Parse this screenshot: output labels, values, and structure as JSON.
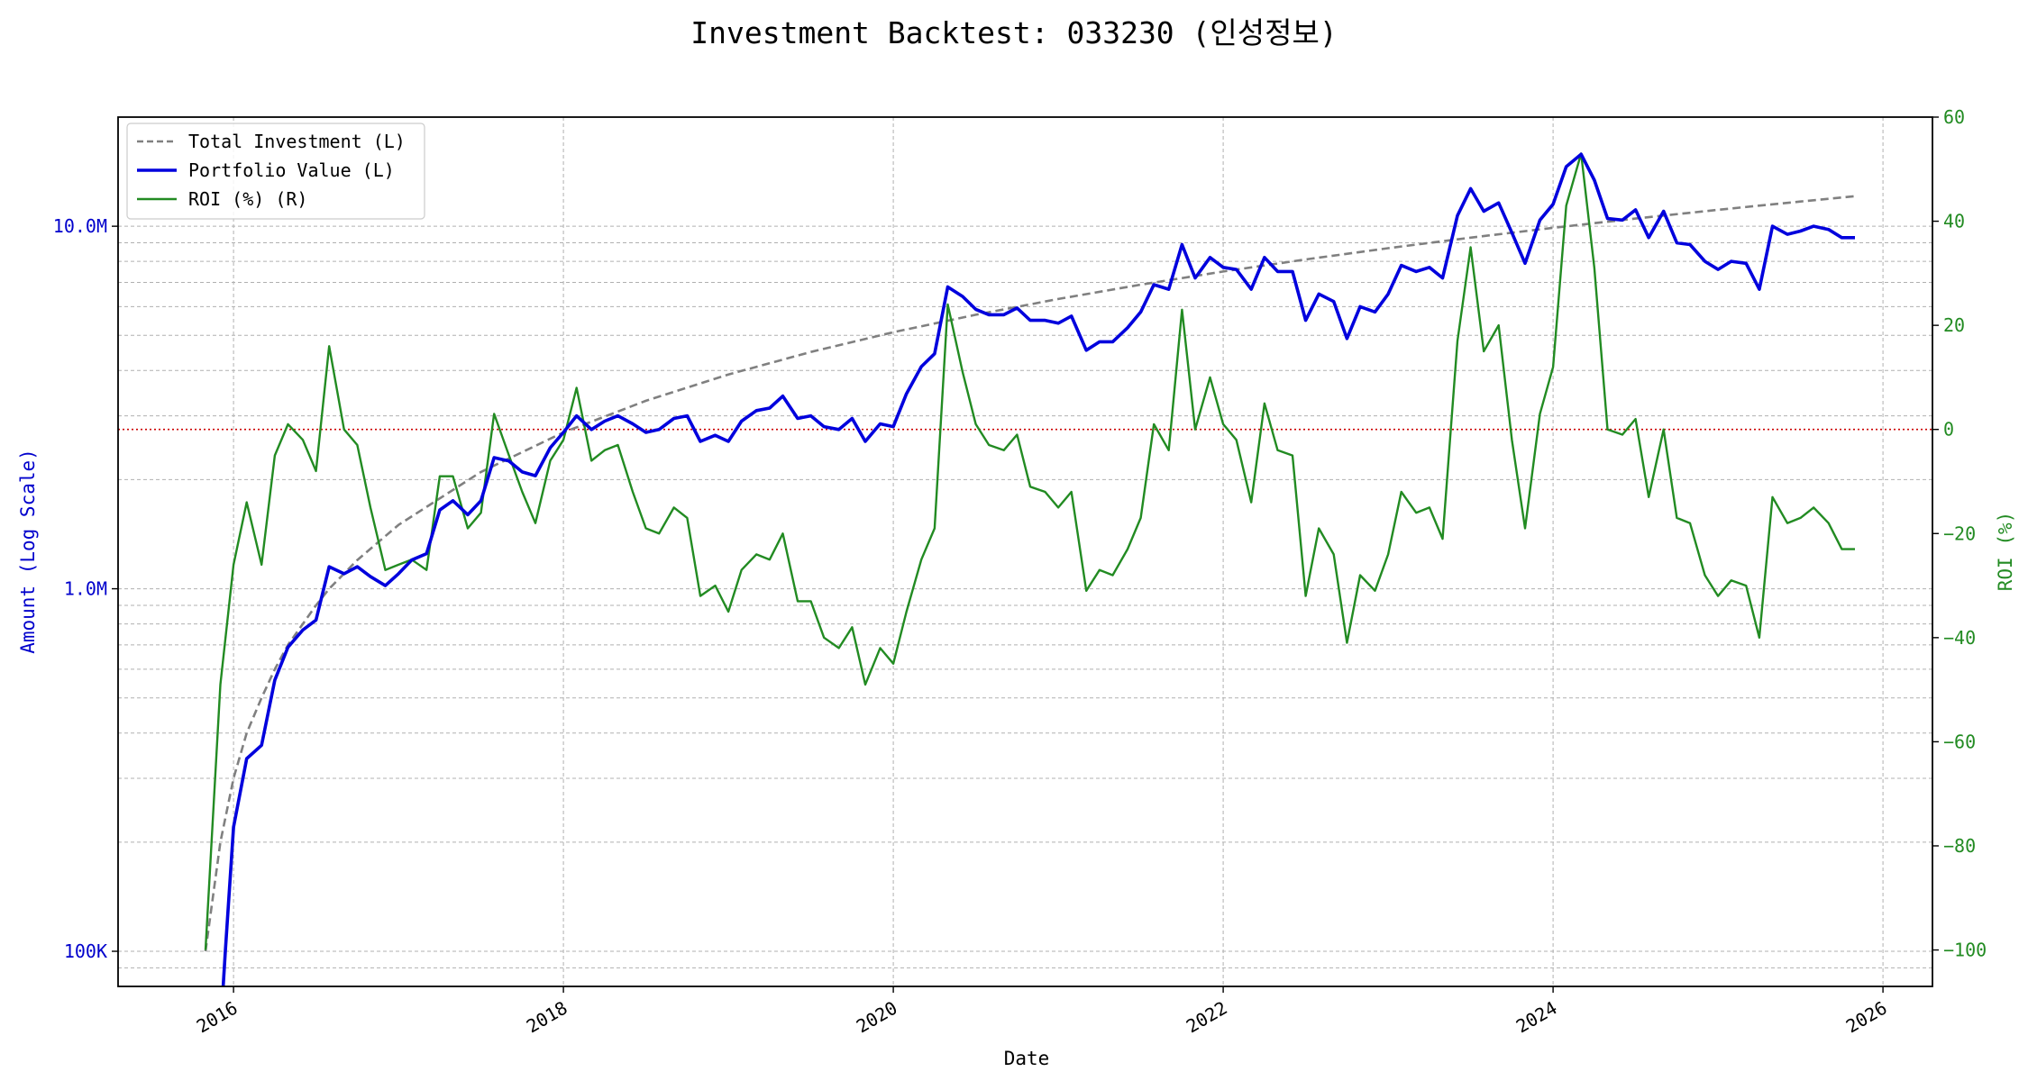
{
  "chart_data": {
    "type": "line",
    "title": "Investment Backtest: 033230 (인성정보)",
    "xlabel": "Date",
    "ylabel_left": "Amount (Log Scale)",
    "ylabel_right": "ROI (%)",
    "left_axis": {
      "scale": "log",
      "range": [
        80000,
        20000000
      ],
      "ticks": [
        100000,
        1000000,
        10000000
      ],
      "tick_labels": [
        "100K",
        "1.0M",
        "10.0M"
      ],
      "color": "#0000cc"
    },
    "right_axis": {
      "scale": "linear",
      "range": [
        -107,
        60
      ],
      "ticks": [
        -100,
        -80,
        -60,
        -40,
        -20,
        0,
        20,
        40,
        60
      ],
      "tick_labels": [
        "−100",
        "−80",
        "−60",
        "−40",
        "−20",
        "0",
        "20",
        "40",
        "60"
      ],
      "color": "#228b22"
    },
    "x_axis": {
      "range": [
        2015.3,
        2026.3
      ],
      "ticks": [
        2016,
        2018,
        2020,
        2022,
        2024,
        2026
      ],
      "tick_labels": [
        "2016",
        "2018",
        "2020",
        "2022",
        "2024",
        "2026"
      ]
    },
    "grid": true,
    "reference_line": {
      "axis": "right",
      "value": 0,
      "style": "dotted",
      "color": "#cc0000"
    },
    "legend": {
      "position": "upper-left",
      "entries": [
        {
          "label": "Total Investment (L)",
          "color": "#808080",
          "style": "dashed"
        },
        {
          "label": "Portfolio Value (L)",
          "color": "#0000dd",
          "style": "solid-thick"
        },
        {
          "label": "ROI (%) (R)",
          "color": "#228b22",
          "style": "solid"
        }
      ]
    },
    "series": [
      {
        "name": "Total Investment (L)",
        "axis": "left",
        "color": "#808080",
        "points": [
          [
            2015.83,
            100000
          ],
          [
            2015.92,
            200000
          ],
          [
            2016.0,
            300000
          ],
          [
            2016.08,
            400000
          ],
          [
            2016.17,
            500000
          ],
          [
            2016.25,
            600000
          ],
          [
            2016.33,
            700000
          ],
          [
            2016.42,
            800000
          ],
          [
            2016.5,
            900000
          ],
          [
            2016.58,
            1000000
          ],
          [
            2016.75,
            1200000
          ],
          [
            2017.0,
            1500000
          ],
          [
            2017.5,
            2100000
          ],
          [
            2018.0,
            2700000
          ],
          [
            2018.5,
            3300000
          ],
          [
            2019.0,
            3900000
          ],
          [
            2019.5,
            4500000
          ],
          [
            2020.0,
            5100000
          ],
          [
            2020.5,
            5700000
          ],
          [
            2021.0,
            6300000
          ],
          [
            2021.5,
            6900000
          ],
          [
            2022.0,
            7500000
          ],
          [
            2022.5,
            8100000
          ],
          [
            2023.0,
            8700000
          ],
          [
            2023.5,
            9300000
          ],
          [
            2024.0,
            9900000
          ],
          [
            2024.5,
            10500000
          ],
          [
            2025.0,
            11100000
          ],
          [
            2025.5,
            11700000
          ],
          [
            2025.83,
            12100000
          ]
        ]
      },
      {
        "name": "Portfolio Value (L)",
        "axis": "left",
        "color": "#0000dd",
        "points": [
          [
            2015.92,
            60000
          ],
          [
            2015.95,
            100000
          ],
          [
            2016.0,
            220000
          ],
          [
            2016.08,
            340000
          ],
          [
            2016.17,
            370000
          ],
          [
            2016.25,
            560000
          ],
          [
            2016.33,
            690000
          ],
          [
            2016.42,
            770000
          ],
          [
            2016.5,
            820000
          ],
          [
            2016.58,
            1150000
          ],
          [
            2016.67,
            1100000
          ],
          [
            2016.75,
            1150000
          ],
          [
            2016.83,
            1080000
          ],
          [
            2016.92,
            1020000
          ],
          [
            2017.0,
            1100000
          ],
          [
            2017.08,
            1200000
          ],
          [
            2017.17,
            1250000
          ],
          [
            2017.25,
            1650000
          ],
          [
            2017.33,
            1750000
          ],
          [
            2017.42,
            1600000
          ],
          [
            2017.5,
            1750000
          ],
          [
            2017.58,
            2300000
          ],
          [
            2017.67,
            2250000
          ],
          [
            2017.75,
            2100000
          ],
          [
            2017.83,
            2050000
          ],
          [
            2017.92,
            2450000
          ],
          [
            2018.0,
            2700000
          ],
          [
            2018.08,
            3000000
          ],
          [
            2018.17,
            2750000
          ],
          [
            2018.25,
            2900000
          ],
          [
            2018.33,
            3000000
          ],
          [
            2018.42,
            2850000
          ],
          [
            2018.5,
            2700000
          ],
          [
            2018.58,
            2750000
          ],
          [
            2018.67,
            2950000
          ],
          [
            2018.75,
            3000000
          ],
          [
            2018.83,
            2550000
          ],
          [
            2018.92,
            2650000
          ],
          [
            2019.0,
            2550000
          ],
          [
            2019.08,
            2900000
          ],
          [
            2019.17,
            3100000
          ],
          [
            2019.25,
            3150000
          ],
          [
            2019.33,
            3400000
          ],
          [
            2019.42,
            2950000
          ],
          [
            2019.5,
            3000000
          ],
          [
            2019.58,
            2800000
          ],
          [
            2019.67,
            2750000
          ],
          [
            2019.75,
            2950000
          ],
          [
            2019.83,
            2550000
          ],
          [
            2019.92,
            2850000
          ],
          [
            2020.0,
            2800000
          ],
          [
            2020.08,
            3450000
          ],
          [
            2020.17,
            4100000
          ],
          [
            2020.25,
            4450000
          ],
          [
            2020.33,
            6800000
          ],
          [
            2020.42,
            6400000
          ],
          [
            2020.5,
            5900000
          ],
          [
            2020.58,
            5700000
          ],
          [
            2020.67,
            5700000
          ],
          [
            2020.75,
            5950000
          ],
          [
            2020.83,
            5500000
          ],
          [
            2020.92,
            5500000
          ],
          [
            2021.0,
            5400000
          ],
          [
            2021.08,
            5650000
          ],
          [
            2021.17,
            4550000
          ],
          [
            2021.25,
            4800000
          ],
          [
            2021.33,
            4800000
          ],
          [
            2021.42,
            5250000
          ],
          [
            2021.5,
            5800000
          ],
          [
            2021.58,
            6900000
          ],
          [
            2021.67,
            6700000
          ],
          [
            2021.75,
            8900000
          ],
          [
            2021.83,
            7200000
          ],
          [
            2021.92,
            8200000
          ],
          [
            2022.0,
            7700000
          ],
          [
            2022.08,
            7600000
          ],
          [
            2022.17,
            6700000
          ],
          [
            2022.25,
            8200000
          ],
          [
            2022.33,
            7500000
          ],
          [
            2022.42,
            7500000
          ],
          [
            2022.5,
            5500000
          ],
          [
            2022.58,
            6500000
          ],
          [
            2022.67,
            6200000
          ],
          [
            2022.75,
            4900000
          ],
          [
            2022.83,
            6000000
          ],
          [
            2022.92,
            5800000
          ],
          [
            2023.0,
            6500000
          ],
          [
            2023.08,
            7800000
          ],
          [
            2023.17,
            7500000
          ],
          [
            2023.25,
            7700000
          ],
          [
            2023.33,
            7200000
          ],
          [
            2023.42,
            10700000
          ],
          [
            2023.5,
            12700000
          ],
          [
            2023.58,
            11000000
          ],
          [
            2023.67,
            11600000
          ],
          [
            2023.75,
            9600000
          ],
          [
            2023.83,
            7900000
          ],
          [
            2023.92,
            10400000
          ],
          [
            2024.0,
            11500000
          ],
          [
            2024.08,
            14600000
          ],
          [
            2024.17,
            15800000
          ],
          [
            2024.25,
            13400000
          ],
          [
            2024.33,
            10500000
          ],
          [
            2024.42,
            10400000
          ],
          [
            2024.5,
            11100000
          ],
          [
            2024.58,
            9300000
          ],
          [
            2024.67,
            11000000
          ],
          [
            2024.75,
            9000000
          ],
          [
            2024.83,
            8900000
          ],
          [
            2024.92,
            8000000
          ],
          [
            2025.0,
            7600000
          ],
          [
            2025.08,
            8000000
          ],
          [
            2025.17,
            7900000
          ],
          [
            2025.25,
            6700000
          ],
          [
            2025.33,
            10000000
          ],
          [
            2025.42,
            9500000
          ],
          [
            2025.5,
            9700000
          ],
          [
            2025.58,
            10000000
          ],
          [
            2025.67,
            9800000
          ],
          [
            2025.75,
            9300000
          ],
          [
            2025.83,
            9300000
          ]
        ]
      },
      {
        "name": "ROI (%) (R)",
        "axis": "right",
        "color": "#228b22",
        "points": [
          [
            2015.83,
            -100
          ],
          [
            2015.92,
            -49
          ],
          [
            2016.0,
            -26
          ],
          [
            2016.08,
            -14
          ],
          [
            2016.17,
            -26
          ],
          [
            2016.25,
            -5
          ],
          [
            2016.33,
            1
          ],
          [
            2016.42,
            -2
          ],
          [
            2016.5,
            -8
          ],
          [
            2016.58,
            16
          ],
          [
            2016.67,
            0
          ],
          [
            2016.75,
            -3
          ],
          [
            2016.83,
            -15
          ],
          [
            2016.92,
            -27
          ],
          [
            2017.0,
            -26
          ],
          [
            2017.08,
            -25
          ],
          [
            2017.17,
            -27
          ],
          [
            2017.25,
            -9
          ],
          [
            2017.33,
            -9
          ],
          [
            2017.42,
            -19
          ],
          [
            2017.5,
            -16
          ],
          [
            2017.58,
            3
          ],
          [
            2017.67,
            -5
          ],
          [
            2017.75,
            -12
          ],
          [
            2017.83,
            -18
          ],
          [
            2017.92,
            -6
          ],
          [
            2018.0,
            -2
          ],
          [
            2018.08,
            8
          ],
          [
            2018.17,
            -6
          ],
          [
            2018.25,
            -4
          ],
          [
            2018.33,
            -3
          ],
          [
            2018.42,
            -12
          ],
          [
            2018.5,
            -19
          ],
          [
            2018.58,
            -20
          ],
          [
            2018.67,
            -15
          ],
          [
            2018.75,
            -17
          ],
          [
            2018.83,
            -32
          ],
          [
            2018.92,
            -30
          ],
          [
            2019.0,
            -35
          ],
          [
            2019.08,
            -27
          ],
          [
            2019.17,
            -24
          ],
          [
            2019.25,
            -25
          ],
          [
            2019.33,
            -20
          ],
          [
            2019.42,
            -33
          ],
          [
            2019.5,
            -33
          ],
          [
            2019.58,
            -40
          ],
          [
            2019.67,
            -42
          ],
          [
            2019.75,
            -38
          ],
          [
            2019.83,
            -49
          ],
          [
            2019.92,
            -42
          ],
          [
            2020.0,
            -45
          ],
          [
            2020.08,
            -35
          ],
          [
            2020.17,
            -25
          ],
          [
            2020.25,
            -19
          ],
          [
            2020.33,
            24
          ],
          [
            2020.42,
            11
          ],
          [
            2020.5,
            1
          ],
          [
            2020.58,
            -3
          ],
          [
            2020.67,
            -4
          ],
          [
            2020.75,
            -1
          ],
          [
            2020.83,
            -11
          ],
          [
            2020.92,
            -12
          ],
          [
            2021.0,
            -15
          ],
          [
            2021.08,
            -12
          ],
          [
            2021.17,
            -31
          ],
          [
            2021.25,
            -27
          ],
          [
            2021.33,
            -28
          ],
          [
            2021.42,
            -23
          ],
          [
            2021.5,
            -17
          ],
          [
            2021.58,
            1
          ],
          [
            2021.67,
            -4
          ],
          [
            2021.75,
            23
          ],
          [
            2021.83,
            0
          ],
          [
            2021.92,
            10
          ],
          [
            2022.0,
            1
          ],
          [
            2022.08,
            -2
          ],
          [
            2022.17,
            -14
          ],
          [
            2022.25,
            5
          ],
          [
            2022.33,
            -4
          ],
          [
            2022.42,
            -5
          ],
          [
            2022.5,
            -32
          ],
          [
            2022.58,
            -19
          ],
          [
            2022.67,
            -24
          ],
          [
            2022.75,
            -41
          ],
          [
            2022.83,
            -28
          ],
          [
            2022.92,
            -31
          ],
          [
            2023.0,
            -24
          ],
          [
            2023.08,
            -12
          ],
          [
            2023.17,
            -16
          ],
          [
            2023.25,
            -15
          ],
          [
            2023.33,
            -21
          ],
          [
            2023.42,
            17
          ],
          [
            2023.5,
            35
          ],
          [
            2023.58,
            15
          ],
          [
            2023.67,
            20
          ],
          [
            2023.75,
            -2
          ],
          [
            2023.83,
            -19
          ],
          [
            2023.92,
            3
          ],
          [
            2024.0,
            12
          ],
          [
            2024.08,
            43
          ],
          [
            2024.17,
            53
          ],
          [
            2024.25,
            31
          ],
          [
            2024.33,
            0
          ],
          [
            2024.42,
            -1
          ],
          [
            2024.5,
            2
          ],
          [
            2024.58,
            -13
          ],
          [
            2024.67,
            0
          ],
          [
            2024.75,
            -17
          ],
          [
            2024.83,
            -18
          ],
          [
            2024.92,
            -28
          ],
          [
            2025.0,
            -32
          ],
          [
            2025.08,
            -29
          ],
          [
            2025.17,
            -30
          ],
          [
            2025.25,
            -40
          ],
          [
            2025.33,
            -13
          ],
          [
            2025.42,
            -18
          ],
          [
            2025.5,
            -17
          ],
          [
            2025.58,
            -15
          ],
          [
            2025.67,
            -18
          ],
          [
            2025.75,
            -23
          ],
          [
            2025.83,
            -23
          ]
        ]
      }
    ]
  }
}
